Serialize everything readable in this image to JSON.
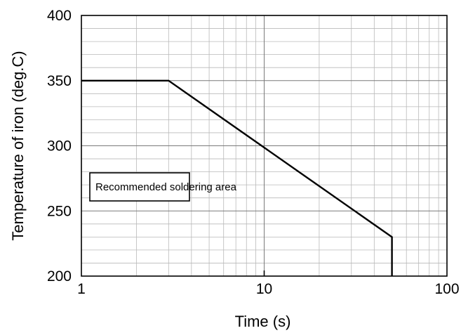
{
  "chart_data": {
    "type": "line",
    "title": "",
    "xlabel": "Time (s)",
    "ylabel": "Temperature of iron (deg.C)",
    "x_scale": "log",
    "xlim": [
      1,
      100
    ],
    "ylim": [
      200,
      400
    ],
    "grid": true,
    "x_tick_labels": [
      "1",
      "10",
      "100"
    ],
    "y_tick_labels": [
      "200",
      "250",
      "300",
      "350",
      "400"
    ],
    "series": [
      {
        "x": [
          1,
          3,
          50,
          50
        ],
        "y": [
          350,
          350,
          230,
          200
        ]
      }
    ],
    "annotations": [
      {
        "text": "Recommended  soldering area",
        "x": 1.1,
        "y": 270
      }
    ]
  }
}
